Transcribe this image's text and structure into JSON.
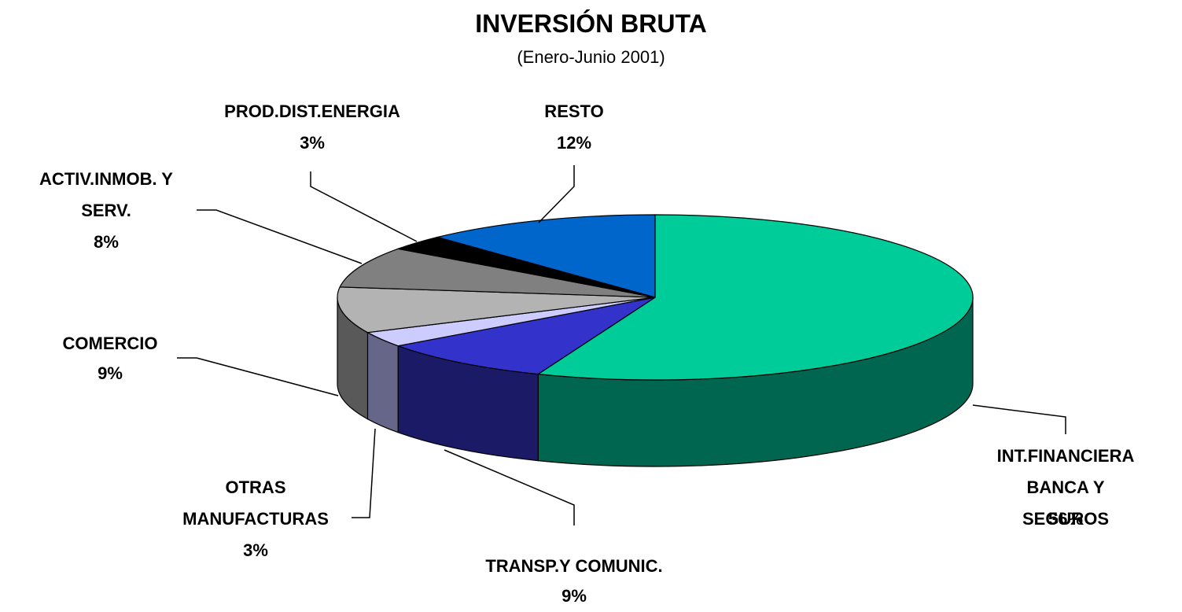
{
  "chart_data": {
    "type": "pie3d",
    "title": "INVERSIÓN BRUTA",
    "subtitle": "(Enero-Junio 2001)",
    "categories": [
      "INT.FINANCIERA\nBANCA Y SEGUROS",
      "TRANSP.Y COMUNIC.",
      "OTRAS\nMANUFACTURAS",
      "COMERCIO",
      "ACTIV.INMOB. Y\nSERV.",
      "PROD.DIST.ENERGIA",
      "RESTO"
    ],
    "values": [
      56,
      9,
      3,
      9,
      8,
      3,
      12
    ],
    "value_labels": [
      "56%",
      "9%",
      "3%",
      "9%",
      "8%",
      "3%",
      "12%"
    ],
    "colors": [
      "#00cc99",
      "#3333cc",
      "#ccccff",
      "#b3b3b3",
      "#808080",
      "#000000",
      "#0066cc"
    ],
    "side_colors": [
      "#006650",
      "#1a1a66",
      "#666688",
      "#595959",
      "#404040",
      "#111111",
      "#003366"
    ]
  }
}
